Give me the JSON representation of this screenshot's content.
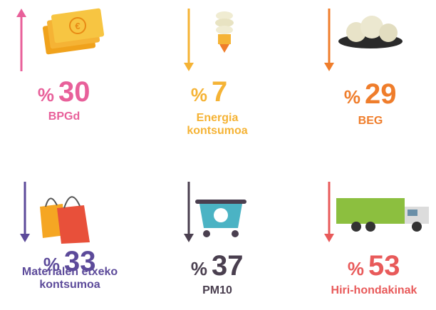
{
  "items": [
    {
      "unit": "%",
      "value": "30",
      "label": [
        "BPGd"
      ],
      "color": "#e8609a",
      "direction": "up"
    },
    {
      "unit": "%",
      "value": "7",
      "label": [
        "Energia",
        "kontsumoa"
      ],
      "color": "#f5b335",
      "direction": "down"
    },
    {
      "unit": "%",
      "value": "29",
      "label": [
        "BEG"
      ],
      "color": "#ef7d2b",
      "direction": "down"
    },
    {
      "unit": "%",
      "value": "33",
      "label": [
        "Materialen etxeko",
        "kontsumoa"
      ],
      "color": "#5c4a9a",
      "direction": "down"
    },
    {
      "unit": "%",
      "value": "37",
      "label": [
        "PM10"
      ],
      "color": "#4a3f4f",
      "direction": "down"
    },
    {
      "unit": "%",
      "value": "53",
      "label": [
        "Hiri-hondakinak"
      ],
      "color": "#e85a5a",
      "direction": "down"
    }
  ]
}
